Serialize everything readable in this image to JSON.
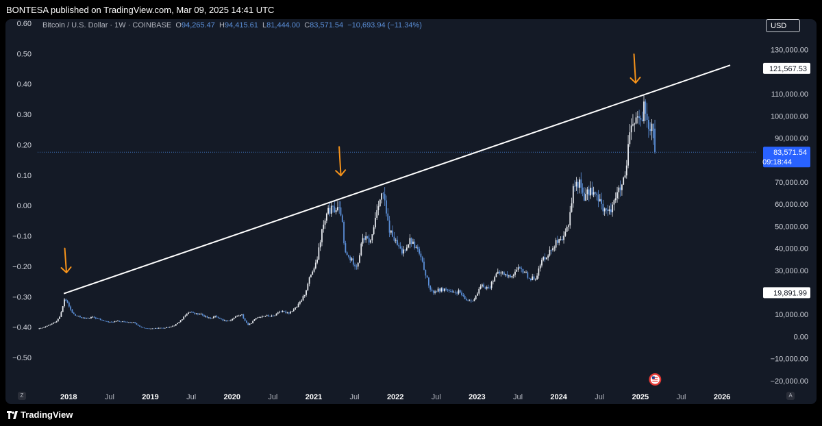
{
  "header": {
    "published": "BONTESA published on TradingView.com, Mar 09, 2025 14:41 UTC"
  },
  "footer": {
    "brand": "TradingView"
  },
  "controls": {
    "currency": "USD",
    "zoom": "Z",
    "auto": "A"
  },
  "legend": {
    "symbol": "Bitcoin / U.S. Dollar · 1W · COINBASE",
    "open_label": "O",
    "open": "94,265.47",
    "high_label": "H",
    "high": "94,415.61",
    "low_label": "L",
    "low": "81,444.00",
    "close_label": "C",
    "close": "83,571.54",
    "change": "−10,693.94 (−11.34%)"
  },
  "colors": {
    "background": "#141a26",
    "up": "#e8ebf0",
    "down": "#5b8fd8",
    "arrow": "#f7931a",
    "trendline": "#ffffff"
  },
  "chart_data": {
    "type": "candlestick",
    "title": "Bitcoin / U.S. Dollar · 1W · COINBASE",
    "x_axis": {
      "labels": [
        "2018",
        "Jul",
        "2019",
        "Jul",
        "2020",
        "Jul",
        "2021",
        "Jul",
        "2022",
        "Jul",
        "2023",
        "Jul",
        "2024",
        "Jul",
        "2025",
        "Jul",
        "2026"
      ],
      "bold": [
        true,
        false,
        true,
        false,
        true,
        false,
        true,
        false,
        true,
        false,
        true,
        false,
        true,
        false,
        true,
        false,
        true
      ],
      "positions_year": [
        2018,
        2018.5,
        2019,
        2019.5,
        2020,
        2020.5,
        2021,
        2021.5,
        2022,
        2022.5,
        2023,
        2023.5,
        2024,
        2024.5,
        2025,
        2025.5,
        2026
      ],
      "range": [
        2017.62,
        2026.36
      ]
    },
    "right_axis": {
      "ticks": [
        130000,
        110000,
        100000,
        90000,
        70000,
        60000,
        50000,
        40000,
        30000,
        10000,
        0,
        -10000,
        -20000
      ],
      "tick_labels": [
        "130,000.00",
        "110,000.00",
        "100,000.00",
        "90,000.00",
        "70,000.00",
        "60,000.00",
        "50,000.00",
        "40,000.00",
        "30,000.00",
        "10,000.00",
        "0.00",
        "−10,000.00",
        "−20,000.00"
      ],
      "range": [
        -25000,
        142000
      ]
    },
    "left_axis": {
      "ticks": [
        0.6,
        0.5,
        0.4,
        0.3,
        0.2,
        0.1,
        0.0,
        -0.1,
        -0.2,
        -0.3,
        -0.4,
        -0.5
      ],
      "tick_labels": [
        "0.60",
        "0.50",
        "0.40",
        "0.30",
        "0.20",
        "0.10",
        "0.00",
        "−0.10",
        "−0.20",
        "−0.30",
        "−0.40",
        "−0.50"
      ]
    },
    "price_labels": [
      {
        "value": 121567.53,
        "text": "121,567.53",
        "style": "white"
      },
      {
        "value": 19891.99,
        "text": "19,891.99",
        "style": "white"
      },
      {
        "value": 83571.54,
        "text": "83,571.54",
        "timer": "09:18:44",
        "style": "blue"
      }
    ],
    "current_price": 83571.54,
    "trendline": {
      "start": [
        2017.94,
        19500
      ],
      "end": [
        2026.1,
        123000
      ]
    },
    "arrows": [
      {
        "x": 2017.96,
        "y_top": 40000,
        "y_bottom": 29000
      },
      {
        "x": 2021.32,
        "y_top": 86000,
        "y_bottom": 73000
      },
      {
        "x": 2024.93,
        "y_top": 128000,
        "y_bottom": 115000
      }
    ],
    "price_path": [
      [
        2017.62,
        3500
      ],
      [
        2017.7,
        4200
      ],
      [
        2017.78,
        5600
      ],
      [
        2017.85,
        7000
      ],
      [
        2017.9,
        10000
      ],
      [
        2017.95,
        17500
      ],
      [
        2018.0,
        14000
      ],
      [
        2018.04,
        11000
      ],
      [
        2018.08,
        9500
      ],
      [
        2018.13,
        9000
      ],
      [
        2018.2,
        8200
      ],
      [
        2018.3,
        8800
      ],
      [
        2018.4,
        7500
      ],
      [
        2018.5,
        6500
      ],
      [
        2018.6,
        7000
      ],
      [
        2018.7,
        6500
      ],
      [
        2018.8,
        6400
      ],
      [
        2018.88,
        4200
      ],
      [
        2018.96,
        3600
      ],
      [
        2019.05,
        3700
      ],
      [
        2019.2,
        4100
      ],
      [
        2019.3,
        5200
      ],
      [
        2019.4,
        8500
      ],
      [
        2019.48,
        11500
      ],
      [
        2019.53,
        10500
      ],
      [
        2019.62,
        10000
      ],
      [
        2019.72,
        8300
      ],
      [
        2019.8,
        9200
      ],
      [
        2019.9,
        7300
      ],
      [
        2019.97,
        7200
      ],
      [
        2020.05,
        9300
      ],
      [
        2020.12,
        9800
      ],
      [
        2020.2,
        5200
      ],
      [
        2020.3,
        8700
      ],
      [
        2020.4,
        9500
      ],
      [
        2020.5,
        9200
      ],
      [
        2020.58,
        11500
      ],
      [
        2020.7,
        10800
      ],
      [
        2020.8,
        13800
      ],
      [
        2020.88,
        18500
      ],
      [
        2020.96,
        28000
      ],
      [
        2021.03,
        33000
      ],
      [
        2021.1,
        48000
      ],
      [
        2021.18,
        57000
      ],
      [
        2021.28,
        58000
      ],
      [
        2021.34,
        56000
      ],
      [
        2021.38,
        38000
      ],
      [
        2021.45,
        35000
      ],
      [
        2021.53,
        32000
      ],
      [
        2021.6,
        45000
      ],
      [
        2021.7,
        43000
      ],
      [
        2021.78,
        60000
      ],
      [
        2021.85,
        65000
      ],
      [
        2021.92,
        49000
      ],
      [
        2022.0,
        43000
      ],
      [
        2022.08,
        38000
      ],
      [
        2022.18,
        44000
      ],
      [
        2022.28,
        39000
      ],
      [
        2022.36,
        30000
      ],
      [
        2022.44,
        20000
      ],
      [
        2022.52,
        21000
      ],
      [
        2022.62,
        21500
      ],
      [
        2022.7,
        19500
      ],
      [
        2022.78,
        20500
      ],
      [
        2022.86,
        16500
      ],
      [
        2022.96,
        16600
      ],
      [
        2023.05,
        23000
      ],
      [
        2023.15,
        22000
      ],
      [
        2023.22,
        28000
      ],
      [
        2023.3,
        29000
      ],
      [
        2023.4,
        27000
      ],
      [
        2023.5,
        30500
      ],
      [
        2023.58,
        29500
      ],
      [
        2023.65,
        26000
      ],
      [
        2023.72,
        27000
      ],
      [
        2023.8,
        35000
      ],
      [
        2023.88,
        38000
      ],
      [
        2023.96,
        42500
      ],
      [
        2024.05,
        43000
      ],
      [
        2024.12,
        52000
      ],
      [
        2024.18,
        68000
      ],
      [
        2024.25,
        70000
      ],
      [
        2024.32,
        63000
      ],
      [
        2024.4,
        67000
      ],
      [
        2024.48,
        62000
      ],
      [
        2024.56,
        58000
      ],
      [
        2024.62,
        56000
      ],
      [
        2024.68,
        63000
      ],
      [
        2024.76,
        67000
      ],
      [
        2024.82,
        72000
      ],
      [
        2024.86,
        90000
      ],
      [
        2024.92,
        97000
      ],
      [
        2024.96,
        100000
      ],
      [
        2025.0,
        94000
      ],
      [
        2025.04,
        105000
      ],
      [
        2025.1,
        97000
      ],
      [
        2025.15,
        96000
      ],
      [
        2025.18,
        84000
      ]
    ]
  }
}
